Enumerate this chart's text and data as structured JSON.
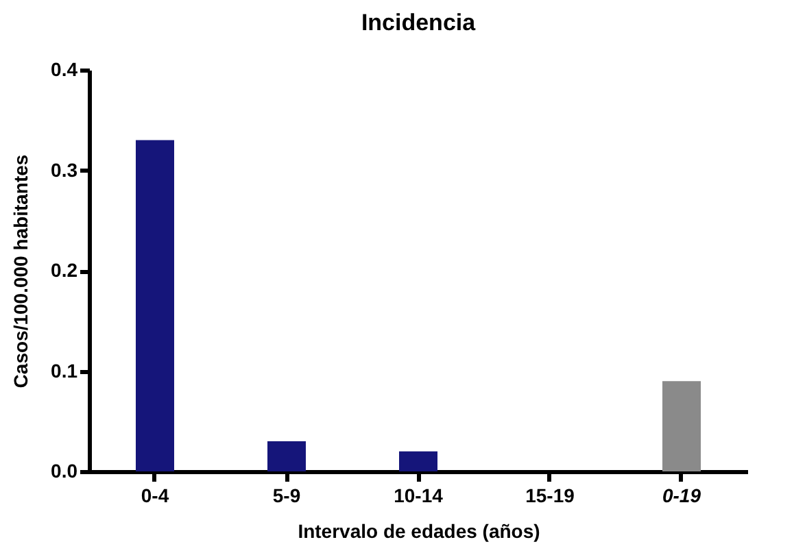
{
  "chart_data": {
    "type": "bar",
    "title": "Incidencia",
    "xlabel": "Intervalo de edades (años)",
    "ylabel": "Casos/100.000 habitantes",
    "categories": [
      "0-4",
      "5-9",
      "10-14",
      "15-19",
      "0-19"
    ],
    "values": [
      0.33,
      0.03,
      0.02,
      0,
      0.09
    ],
    "colors": [
      "#15157a",
      "#15157a",
      "#15157a",
      "#15157a",
      "#8a8a8a"
    ],
    "ylim": [
      0,
      0.4
    ],
    "yticks": [
      {
        "value": 0,
        "label": "0.0"
      },
      0.1,
      0.2,
      0.3,
      0.4
    ],
    "grid": false
  }
}
